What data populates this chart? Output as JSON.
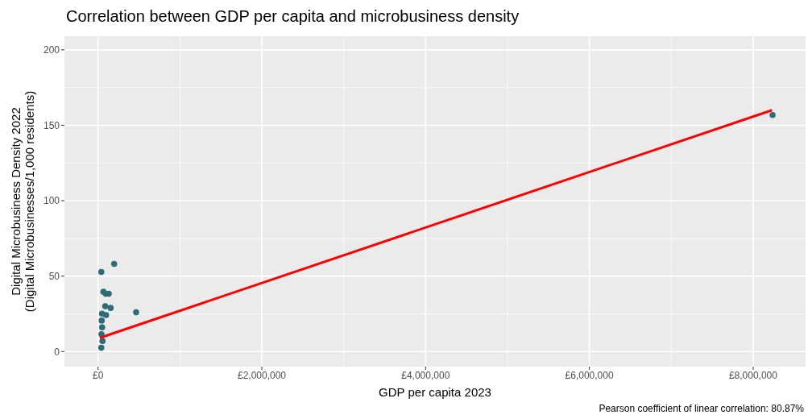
{
  "chart_data": {
    "type": "scatter",
    "title": "Correlation between GDP per capita and microbusiness density",
    "xlabel": "GDP per capita 2023",
    "ylabel": "Digital Microbusiness Density 2022\n(Digital Microbusinesses/1,000 residents)",
    "annotations": [
      "Pearson coefficient of linear correlation: 80.87%"
    ],
    "series": [
      {
        "color": "#2f6b77",
        "x": [
          197000,
          40000,
          66000,
          95000,
          131000,
          88000,
          154000,
          465000,
          98000,
          49000,
          45000,
          50000,
          42000,
          55000,
          40000,
          8237000
        ],
        "values": [
          58.1,
          52.8,
          39.6,
          38.3,
          38.3,
          30,
          28.9,
          26,
          24.2,
          25.1,
          20.5,
          16,
          11.5,
          7,
          2.5,
          156.8
        ]
      },
      {
        "type": "line",
        "color": "#ff0000",
        "marker": "none",
        "x": [
          23000,
          8230000
        ],
        "values": [
          9.1,
          160
        ]
      }
    ],
    "xlim": [
      -410000,
      8640000
    ],
    "xticks": [
      {
        "value": 0,
        "label": "£0"
      },
      {
        "value": 2000000,
        "label": "£2,000,000"
      },
      {
        "value": 4000000,
        "label": "£4,000,000"
      },
      {
        "value": 6000000,
        "label": "£6,000,000"
      },
      {
        "value": 8000000,
        "label": "£8,000,000"
      }
    ],
    "ylim": [
      -10,
      209
    ],
    "yticks": [
      0,
      50,
      100,
      150,
      200
    ],
    "grid": true,
    "marker": "circle"
  }
}
